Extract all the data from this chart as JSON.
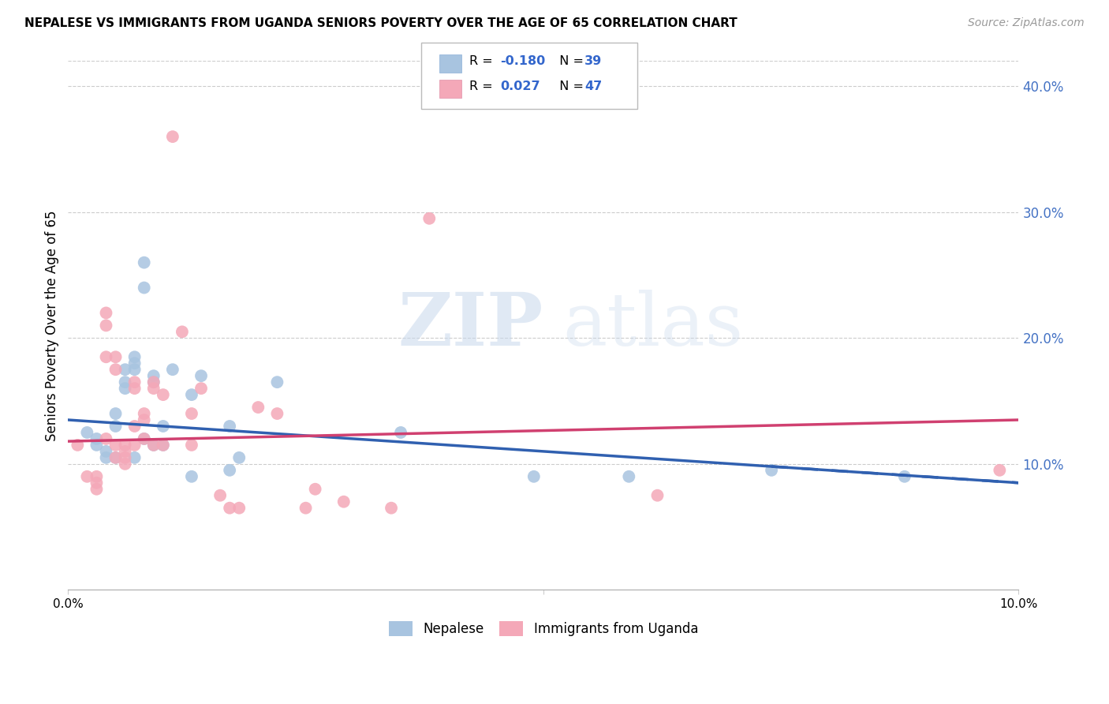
{
  "title": "NEPALESE VS IMMIGRANTS FROM UGANDA SENIORS POVERTY OVER THE AGE OF 65 CORRELATION CHART",
  "source": "Source: ZipAtlas.com",
  "ylabel": "Seniors Poverty Over the Age of 65",
  "xlim": [
    0.0,
    0.1
  ],
  "ylim": [
    0.0,
    0.42
  ],
  "y_ticks_right": [
    0.1,
    0.2,
    0.3,
    0.4
  ],
  "y_tick_labels_right": [
    "10.0%",
    "20.0%",
    "30.0%",
    "40.0%"
  ],
  "grid_color": "#cccccc",
  "nepalese_color": "#a8c4e0",
  "uganda_color": "#f4a8b8",
  "nepalese_line_color": "#3060b0",
  "uganda_line_color": "#d04070",
  "nepalese_x": [
    0.002,
    0.003,
    0.003,
    0.004,
    0.004,
    0.005,
    0.005,
    0.005,
    0.006,
    0.006,
    0.006,
    0.007,
    0.007,
    0.007,
    0.007,
    0.008,
    0.008,
    0.008,
    0.009,
    0.009,
    0.009,
    0.01,
    0.01,
    0.011,
    0.013,
    0.013,
    0.014,
    0.017,
    0.017,
    0.018,
    0.022,
    0.035,
    0.049,
    0.059,
    0.074,
    0.088
  ],
  "nepalese_y": [
    0.125,
    0.12,
    0.115,
    0.11,
    0.105,
    0.14,
    0.13,
    0.105,
    0.175,
    0.165,
    0.16,
    0.185,
    0.18,
    0.175,
    0.105,
    0.24,
    0.26,
    0.12,
    0.17,
    0.165,
    0.115,
    0.13,
    0.115,
    0.175,
    0.155,
    0.09,
    0.17,
    0.13,
    0.095,
    0.105,
    0.165,
    0.125,
    0.09,
    0.09,
    0.095,
    0.09
  ],
  "uganda_x": [
    0.001,
    0.002,
    0.003,
    0.003,
    0.003,
    0.004,
    0.004,
    0.004,
    0.004,
    0.005,
    0.005,
    0.005,
    0.005,
    0.006,
    0.006,
    0.006,
    0.006,
    0.007,
    0.007,
    0.007,
    0.007,
    0.008,
    0.008,
    0.008,
    0.009,
    0.009,
    0.009,
    0.01,
    0.01,
    0.011,
    0.012,
    0.013,
    0.013,
    0.014,
    0.016,
    0.017,
    0.018,
    0.02,
    0.022,
    0.025,
    0.026,
    0.029,
    0.034,
    0.038,
    0.062,
    0.098
  ],
  "uganda_y": [
    0.115,
    0.09,
    0.09,
    0.085,
    0.08,
    0.22,
    0.21,
    0.185,
    0.12,
    0.185,
    0.175,
    0.115,
    0.105,
    0.115,
    0.11,
    0.105,
    0.1,
    0.165,
    0.16,
    0.13,
    0.115,
    0.14,
    0.135,
    0.12,
    0.165,
    0.16,
    0.115,
    0.155,
    0.115,
    0.36,
    0.205,
    0.14,
    0.115,
    0.16,
    0.075,
    0.065,
    0.065,
    0.145,
    0.14,
    0.065,
    0.08,
    0.07,
    0.065,
    0.295,
    0.075,
    0.095
  ],
  "nepalese_line_x": [
    0.0,
    0.1
  ],
  "nepalese_line_y": [
    0.135,
    0.085
  ],
  "uganda_line_x": [
    0.0,
    0.1
  ],
  "uganda_line_y": [
    0.118,
    0.135
  ]
}
